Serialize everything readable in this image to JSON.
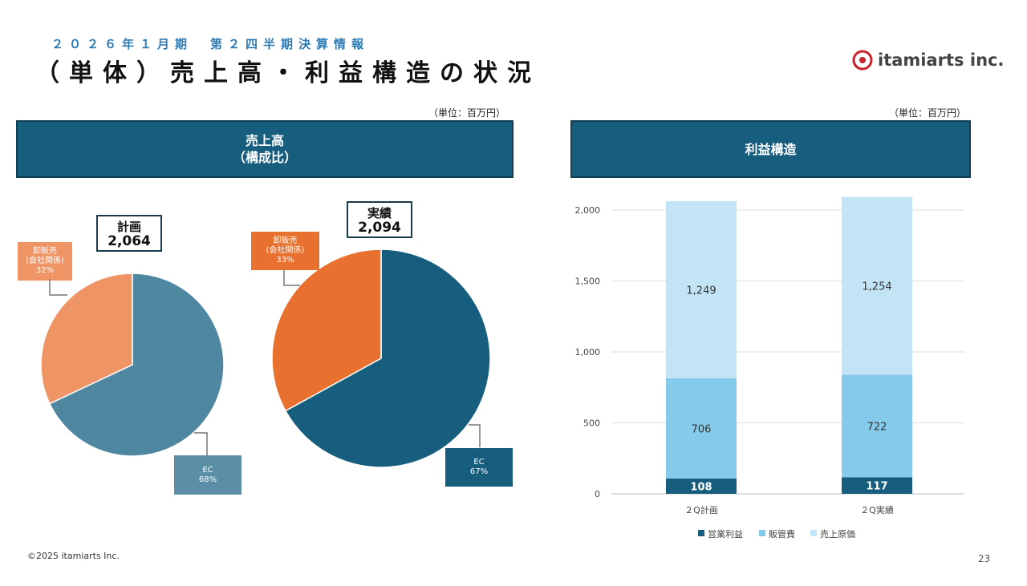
{
  "header": {
    "subtitle": "２０２６年１月期　第２四半期決算情報",
    "title": "（単体）売上高・利益構造の状況",
    "logo_text": "itamiarts inc."
  },
  "left_panel": {
    "unit": "（単位：百万円）",
    "band_line1": "売上高",
    "band_line2": "（構成比）"
  },
  "right_panel": {
    "unit": "（単位：百万円）",
    "band": "利益構造"
  },
  "colors": {
    "navy": "#175e7e",
    "orange": "#e8712f",
    "steel": "#4f87a0",
    "salmon": "#ef9465",
    "mid_blue": "#85c9eb",
    "light_blue": "#c3e4f4"
  },
  "chart_data": [
    {
      "type": "pie",
      "title": "計画",
      "total": "2,064",
      "slices": [
        {
          "label": "EC",
          "value": 68,
          "display": "68%",
          "color": "#4f87a0"
        },
        {
          "label": "卸販売\n(会社関係)",
          "value": 32,
          "display": "32%",
          "color": "#ef9465"
        }
      ]
    },
    {
      "type": "pie",
      "title": "実績",
      "total": "2,094",
      "slices": [
        {
          "label": "EC",
          "value": 67,
          "display": "67%",
          "color": "#175e7e"
        },
        {
          "label": "卸販売\n(会社関係)",
          "value": 33,
          "display": "33%",
          "color": "#e8712f"
        }
      ]
    },
    {
      "type": "bar",
      "stacked": true,
      "categories": [
        "２Q計画",
        "２Q実績"
      ],
      "series": [
        {
          "name": "営業利益",
          "values": [
            108,
            117
          ],
          "labels": [
            "108",
            "117"
          ],
          "color": "#175e7e"
        },
        {
          "name": "販管費",
          "values": [
            706,
            722
          ],
          "labels": [
            "706",
            "722"
          ],
          "color": "#85c9eb"
        },
        {
          "name": "売上原価",
          "values": [
            1249,
            1254
          ],
          "labels": [
            "1,249",
            "1,254"
          ],
          "color": "#c3e4f4"
        }
      ],
      "yticks": [
        "0",
        "500",
        "1,000",
        "1,500",
        "2,000"
      ],
      "ylim": [
        0,
        2000
      ],
      "grid": true,
      "legend": "bottom"
    }
  ],
  "footer": {
    "copyright": "©2025 itamiarts Inc.",
    "page_number": "23"
  }
}
